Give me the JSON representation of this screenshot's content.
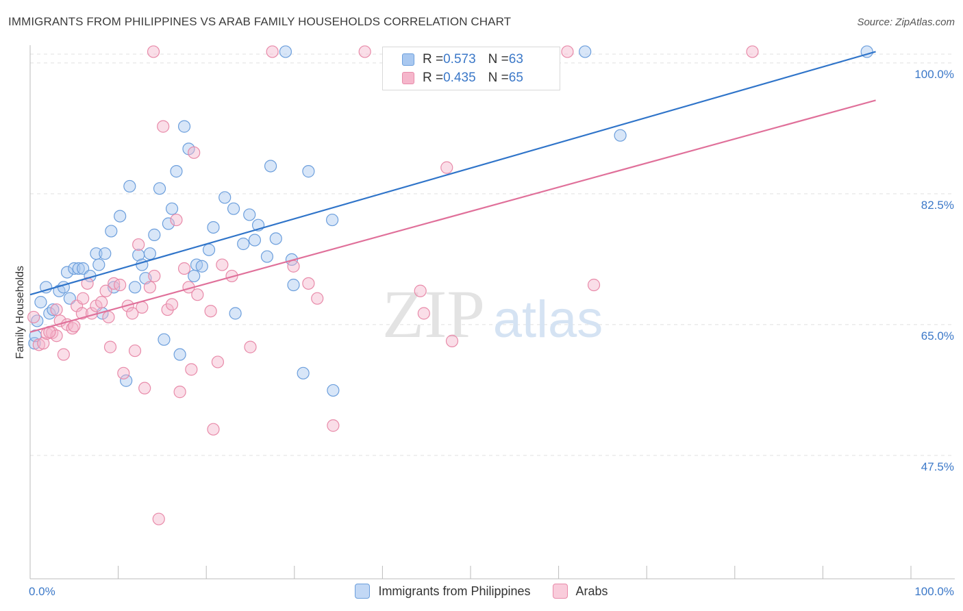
{
  "header": {
    "title": "IMMIGRANTS FROM PHILIPPINES VS ARAB FAMILY HOUSEHOLDS CORRELATION CHART",
    "source": "Source: ZipAtlas.com"
  },
  "watermark": {
    "zip": "ZIP",
    "atlas": "atlas"
  },
  "legend_top": [
    {
      "r_label": "R = ",
      "r_value": "0.573",
      "n_label": "N = ",
      "n_value": "63"
    },
    {
      "r_label": "R = ",
      "r_value": "0.435",
      "n_label": "N = ",
      "n_value": "65"
    }
  ],
  "chart_data": {
    "type": "scatter",
    "title": "IMMIGRANTS FROM PHILIPPINES VS ARAB FAMILY HOUSEHOLDS CORRELATION CHART",
    "xlabel": "",
    "ylabel": "Family Households",
    "xlim": [
      0,
      100
    ],
    "ylim": [
      31,
      102
    ],
    "x_tick_labels": [
      "0.0%",
      "100.0%"
    ],
    "y_ticks": [
      47.5,
      65.0,
      82.5,
      100.0
    ],
    "y_tick_labels": [
      "47.5%",
      "65.0%",
      "82.5%",
      "100.0%"
    ],
    "grid": true,
    "legend_position": "bottom",
    "colors": {
      "blue_fill": "#a9c8f0",
      "blue_stroke": "#6b9edc",
      "blue_line": "#2f74c9",
      "pink_fill": "#f5b6cb",
      "pink_stroke": "#e88aa9",
      "pink_line": "#e0709a",
      "axis_label": "#3b78c8",
      "grid": "#e0e0e0"
    },
    "series": [
      {
        "name": "Immigrants from Philippines",
        "color": "#a9c8f0",
        "trendline": {
          "x": [
            0,
            96
          ],
          "y": [
            69.0,
            101.5
          ]
        },
        "points": [
          [
            0.5,
            62.5
          ],
          [
            0.6,
            63.5
          ],
          [
            0.8,
            65.5
          ],
          [
            1.2,
            68
          ],
          [
            1.8,
            70
          ],
          [
            2.2,
            66.5
          ],
          [
            2.6,
            67
          ],
          [
            3.3,
            69.5
          ],
          [
            3.8,
            70
          ],
          [
            4.5,
            68.5
          ],
          [
            4.2,
            72
          ],
          [
            5.0,
            72.5
          ],
          [
            5.5,
            72.5
          ],
          [
            6.0,
            72.5
          ],
          [
            6.8,
            71.5
          ],
          [
            7.5,
            74.5
          ],
          [
            7.8,
            73
          ],
          [
            8.2,
            66.5
          ],
          [
            8.5,
            74.5
          ],
          [
            9.2,
            77.5
          ],
          [
            9.5,
            70
          ],
          [
            10.2,
            79.5
          ],
          [
            10.9,
            57.5
          ],
          [
            11.3,
            83.5
          ],
          [
            11.9,
            70
          ],
          [
            12.3,
            74.3
          ],
          [
            12.7,
            73
          ],
          [
            13.1,
            71.2
          ],
          [
            13.6,
            74.5
          ],
          [
            14.1,
            77
          ],
          [
            14.7,
            83.2
          ],
          [
            15.2,
            63
          ],
          [
            15.7,
            78.5
          ],
          [
            16.1,
            80.5
          ],
          [
            16.6,
            85.5
          ],
          [
            17.0,
            61
          ],
          [
            17.5,
            91.5
          ],
          [
            18.0,
            88.5
          ],
          [
            18.6,
            71.5
          ],
          [
            18.9,
            73
          ],
          [
            19.5,
            72.8
          ],
          [
            20.3,
            75
          ],
          [
            20.8,
            78
          ],
          [
            22.1,
            82
          ],
          [
            23.1,
            80.5
          ],
          [
            23.3,
            66.5
          ],
          [
            24.2,
            75.8
          ],
          [
            24.9,
            79.7
          ],
          [
            25.5,
            76.3
          ],
          [
            25.9,
            78.3
          ],
          [
            26.9,
            74.1
          ],
          [
            27.3,
            86.2
          ],
          [
            27.9,
            76.5
          ],
          [
            29.7,
            73.7
          ],
          [
            29.9,
            70.3
          ],
          [
            31.0,
            58.5
          ],
          [
            31.6,
            85.5
          ],
          [
            34.4,
            56.2
          ],
          [
            34.3,
            79
          ],
          [
            29,
            101.5
          ],
          [
            63,
            101.5
          ],
          [
            67,
            90.3
          ],
          [
            95,
            101.5
          ]
        ]
      },
      {
        "name": "Arabs",
        "color": "#f5b6cb",
        "trendline": {
          "x": [
            0,
            96
          ],
          "y": [
            64.0,
            95.0
          ]
        },
        "points": [
          [
            0.4,
            66
          ],
          [
            1.0,
            62.3
          ],
          [
            1.5,
            62.5
          ],
          [
            1.9,
            63.8
          ],
          [
            2.5,
            63.9
          ],
          [
            3.0,
            67
          ],
          [
            3.4,
            65.5
          ],
          [
            3.8,
            61
          ],
          [
            4.2,
            65
          ],
          [
            4.8,
            64.5
          ],
          [
            5.3,
            67.5
          ],
          [
            5.9,
            66.5
          ],
          [
            6.0,
            68.5
          ],
          [
            6.5,
            70.5
          ],
          [
            7.0,
            66.5
          ],
          [
            7.5,
            67.5
          ],
          [
            8.1,
            68
          ],
          [
            8.6,
            69.5
          ],
          [
            8.9,
            66
          ],
          [
            9.1,
            62
          ],
          [
            9.5,
            70.5
          ],
          [
            10.2,
            70.3
          ],
          [
            10.6,
            58.5
          ],
          [
            11.1,
            67.5
          ],
          [
            11.6,
            66.5
          ],
          [
            11.9,
            61.5
          ],
          [
            12.3,
            75.7
          ],
          [
            12.7,
            67.3
          ],
          [
            13.0,
            56.5
          ],
          [
            13.6,
            70
          ],
          [
            14.1,
            71.5
          ],
          [
            14.6,
            39
          ],
          [
            15.1,
            91.5
          ],
          [
            15.6,
            67
          ],
          [
            16.1,
            67.7
          ],
          [
            16.6,
            79
          ],
          [
            17.0,
            56
          ],
          [
            17.5,
            72.5
          ],
          [
            18.0,
            70
          ],
          [
            18.3,
            59
          ],
          [
            18.6,
            88
          ],
          [
            19.0,
            69
          ],
          [
            20.5,
            66.8
          ],
          [
            20.8,
            51
          ],
          [
            21.3,
            60
          ],
          [
            21.8,
            73
          ],
          [
            22.9,
            71.5
          ],
          [
            25.0,
            62
          ],
          [
            29.9,
            72.8
          ],
          [
            31.6,
            70.5
          ],
          [
            32.6,
            68.5
          ],
          [
            34.4,
            51.5
          ],
          [
            44.3,
            69.5
          ],
          [
            44.7,
            66.5
          ],
          [
            47.3,
            86
          ],
          [
            47.9,
            62.8
          ],
          [
            64.0,
            70.3
          ],
          [
            14,
            101.5
          ],
          [
            27.5,
            101.5
          ],
          [
            38,
            101.5
          ],
          [
            61,
            101.5
          ],
          [
            82,
            101.5
          ],
          [
            3.0,
            63.5
          ],
          [
            2.2,
            64
          ],
          [
            5.0,
            64.8
          ]
        ]
      }
    ]
  }
}
